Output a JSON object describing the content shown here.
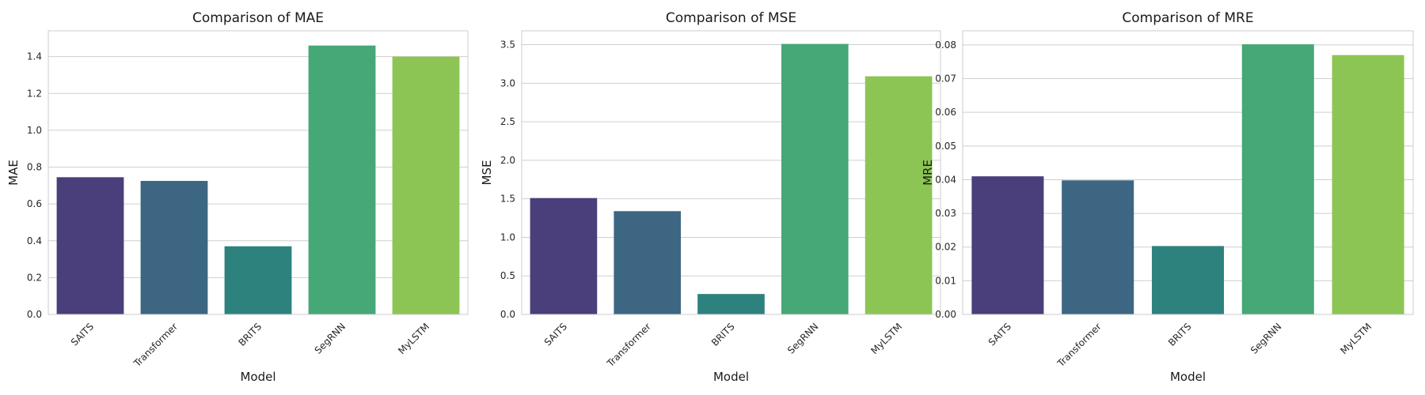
{
  "chart_data": [
    {
      "type": "bar",
      "title": "Comparison of MAE",
      "xlabel": "Model",
      "ylabel": "MAE",
      "categories": [
        "SAITS",
        "Transformer",
        "BRITS",
        "SegRNN",
        "MyLSTM"
      ],
      "values": [
        0.745,
        0.725,
        0.37,
        1.46,
        1.4
      ],
      "ylim": [
        0,
        1.54
      ],
      "yticks": [
        "0.0",
        "0.2",
        "0.4",
        "0.6",
        "0.8",
        "1.0",
        "1.2",
        "1.4"
      ],
      "ytick_values": [
        0,
        0.2,
        0.4,
        0.6,
        0.8,
        1.0,
        1.2,
        1.4
      ],
      "grid": true,
      "colors": [
        "#4a3f7a",
        "#3d6683",
        "#2d827e",
        "#45a876",
        "#8dc555"
      ]
    },
    {
      "type": "bar",
      "title": "Comparison of MSE",
      "xlabel": "Model",
      "ylabel": "MSE",
      "categories": [
        "SAITS",
        "Transformer",
        "BRITS",
        "SegRNN",
        "MyLSTM"
      ],
      "values": [
        1.51,
        1.34,
        0.265,
        3.51,
        3.09
      ],
      "ylim": [
        0,
        3.68
      ],
      "yticks": [
        "0.0",
        "0.5",
        "1.0",
        "1.5",
        "2.0",
        "2.5",
        "3.0",
        "3.5"
      ],
      "ytick_values": [
        0,
        0.5,
        1.0,
        1.5,
        2.0,
        2.5,
        3.0,
        3.5
      ],
      "grid": true,
      "colors": [
        "#4a3f7a",
        "#3d6683",
        "#2d827e",
        "#45a876",
        "#8dc555"
      ]
    },
    {
      "type": "bar",
      "title": "Comparison of MRE",
      "xlabel": "Model",
      "ylabel": "MRE",
      "categories": [
        "SAITS",
        "Transformer",
        "BRITS",
        "SegRNN",
        "MyLSTM"
      ],
      "values": [
        0.041,
        0.0398,
        0.0203,
        0.0802,
        0.077
      ],
      "ylim": [
        0,
        0.0842
      ],
      "yticks": [
        "0.00",
        "0.01",
        "0.02",
        "0.03",
        "0.04",
        "0.05",
        "0.06",
        "0.07",
        "0.08"
      ],
      "ytick_values": [
        0,
        0.01,
        0.02,
        0.03,
        0.04,
        0.05,
        0.06,
        0.07,
        0.08
      ],
      "grid": true,
      "colors": [
        "#4a3f7a",
        "#3d6683",
        "#2d827e",
        "#45a876",
        "#8dc555"
      ]
    }
  ]
}
